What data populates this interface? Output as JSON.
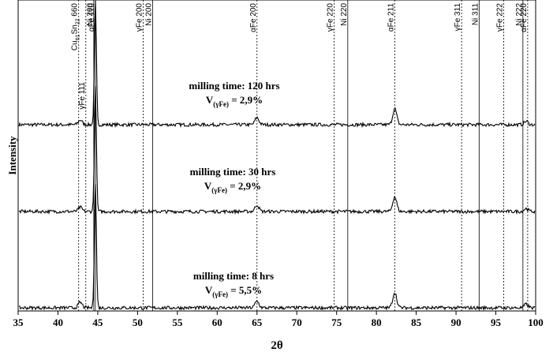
{
  "chart_data": {
    "type": "line",
    "xlabel": "2θ",
    "ylabel": "Intensity",
    "xlim": [
      35,
      100
    ],
    "x_ticks": [
      "35",
      "40",
      "45",
      "50",
      "55",
      "60",
      "65",
      "70",
      "75",
      "80",
      "85",
      "90",
      "95",
      "100"
    ],
    "reference_lines": [
      {
        "label": "Cu61Sn22 660",
        "label_main": "Cu",
        "label_sub1": "61",
        "label_mid": "Sn",
        "label_sub2": "22",
        "label_tail": " 660",
        "x": 42.6,
        "style": "dashed",
        "row": 0
      },
      {
        "label": "γFe 111",
        "x": 43.5,
        "style": "dashed",
        "row": 1
      },
      {
        "label": "Ni 200",
        "x": 44.5,
        "style": "solid",
        "row": 0
      },
      {
        "label": "αFe 110",
        "x": 44.7,
        "style": "solid",
        "row": 0
      },
      {
        "label": "γFe 200",
        "x": 50.7,
        "style": "dashed",
        "row": 0
      },
      {
        "label": "Ni 200",
        "x": 51.9,
        "style": "solid",
        "row": 0
      },
      {
        "label": "αFe 200",
        "x": 65.0,
        "style": "dashed",
        "row": 0
      },
      {
        "label": "γFe 220",
        "x": 74.7,
        "style": "dashed",
        "row": 0
      },
      {
        "label": "Ni 220",
        "x": 76.4,
        "style": "solid",
        "row": 0
      },
      {
        "label": "αFe 211",
        "x": 82.3,
        "style": "dashed",
        "row": 0
      },
      {
        "label": "γFe 311",
        "x": 90.7,
        "style": "dashed",
        "row": 0
      },
      {
        "label": "Ni 311",
        "x": 92.9,
        "style": "solid",
        "row": 0
      },
      {
        "label": "γFe 222",
        "x": 96.0,
        "style": "dashed",
        "row": 0
      },
      {
        "label": "Ni 222",
        "x": 98.4,
        "style": "solid",
        "row": 0
      },
      {
        "label": "αFe 220",
        "x": 99.0,
        "style": "dashed",
        "row": 0
      }
    ],
    "series": [
      {
        "line1": "milling time: 120 hrs",
        "line2_pre": "V",
        "line2_sub": "(γFe)",
        "line2_post": " = 2,9%",
        "peaks": [
          [
            42.8,
            0.4
          ],
          [
            44.7,
            10.5
          ],
          [
            65.0,
            0.6
          ],
          [
            82.3,
            1.35
          ],
          [
            98.8,
            0.28
          ]
        ]
      },
      {
        "line1": "milling time: 30 hrs",
        "line2_pre": "V",
        "line2_sub": "(γFe)",
        "line2_post": " = 2,9%",
        "peaks": [
          [
            42.8,
            0.35
          ],
          [
            44.7,
            10.5
          ],
          [
            65.0,
            0.55
          ],
          [
            82.3,
            1.25
          ],
          [
            98.8,
            0.25
          ]
        ]
      },
      {
        "line1": "milling time: 8 hrs",
        "line2_pre": "V",
        "line2_sub": "(γFe)",
        "line2_post": " = 5,5%",
        "peaks": [
          [
            42.8,
            0.45
          ],
          [
            44.7,
            10.5
          ],
          [
            65.0,
            0.55
          ],
          [
            82.3,
            1.3
          ],
          [
            98.8,
            0.3
          ]
        ]
      }
    ]
  }
}
